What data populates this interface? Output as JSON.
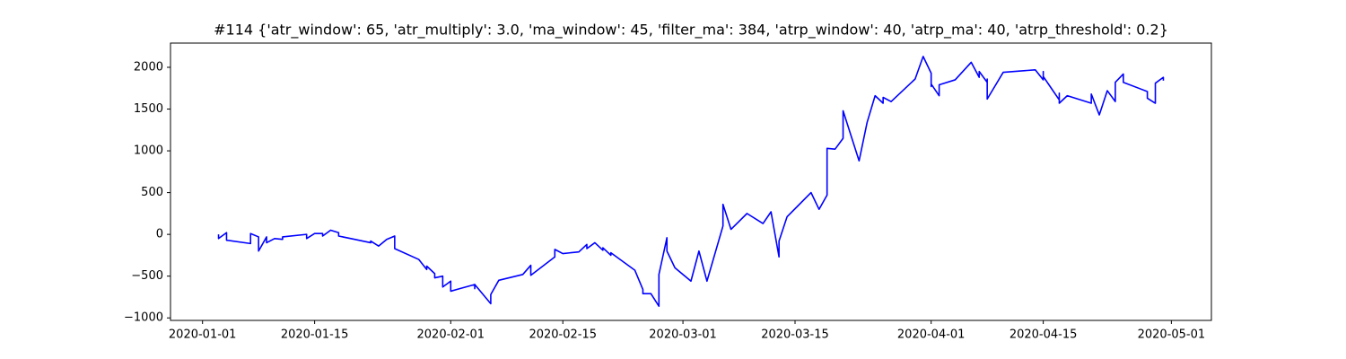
{
  "chart_data": {
    "type": "line",
    "title": "#114 {'atr_window': 65, 'atr_multiply': 3.0, 'ma_window': 45, 'filter_ma': 384, 'atrp_window': 40, 'atrp_ma': 40, 'atrp_threshold': 0.2}",
    "color": "#0000ff",
    "x": [
      "2020-01-03",
      "2020-01-03",
      "2020-01-04",
      "2020-01-04",
      "2020-01-04",
      "2020-01-07",
      "2020-01-07",
      "2020-01-08",
      "2020-01-08",
      "2020-01-09",
      "2020-01-09",
      "2020-01-10",
      "2020-01-11",
      "2020-01-11",
      "2020-01-14",
      "2020-01-14",
      "2020-01-15",
      "2020-01-16",
      "2020-01-16",
      "2020-01-17",
      "2020-01-18",
      "2020-01-18",
      "2020-01-20",
      "2020-01-22",
      "2020-01-22",
      "2020-01-23",
      "2020-01-24",
      "2020-01-25",
      "2020-01-25",
      "2020-01-28",
      "2020-01-29",
      "2020-01-29",
      "2020-01-30",
      "2020-01-30",
      "2020-01-31",
      "2020-01-31",
      "2020-02-01",
      "2020-02-01",
      "2020-02-04",
      "2020-02-04",
      "2020-02-04",
      "2020-02-06",
      "2020-02-06",
      "2020-02-07",
      "2020-02-10",
      "2020-02-11",
      "2020-02-11",
      "2020-02-14",
      "2020-02-14",
      "2020-02-15",
      "2020-02-17",
      "2020-02-18",
      "2020-02-18",
      "2020-02-19",
      "2020-02-20",
      "2020-02-20",
      "2020-02-21",
      "2020-02-21",
      "2020-02-21",
      "2020-02-24",
      "2020-02-25",
      "2020-02-25",
      "2020-02-26",
      "2020-02-27",
      "2020-02-27",
      "2020-02-27",
      "2020-02-28",
      "2020-02-28",
      "2020-02-29",
      "2020-03-02",
      "2020-03-03",
      "2020-03-04",
      "2020-03-06",
      "2020-03-06",
      "2020-03-07",
      "2020-03-09",
      "2020-03-11",
      "2020-03-12",
      "2020-03-13",
      "2020-03-13",
      "2020-03-14",
      "2020-03-17",
      "2020-03-18",
      "2020-03-19",
      "2020-03-19",
      "2020-03-20",
      "2020-03-21",
      "2020-03-21",
      "2020-03-23",
      "2020-03-24",
      "2020-03-24",
      "2020-03-25",
      "2020-03-26",
      "2020-03-26",
      "2020-03-27",
      "2020-03-30",
      "2020-03-31",
      "2020-04-01",
      "2020-04-01",
      "2020-04-01",
      "2020-04-02",
      "2020-04-02",
      "2020-04-04",
      "2020-04-06",
      "2020-04-07",
      "2020-04-07",
      "2020-04-08",
      "2020-04-08",
      "2020-04-08",
      "2020-04-10",
      "2020-04-14",
      "2020-04-15",
      "2020-04-15",
      "2020-04-15",
      "2020-04-16",
      "2020-04-16",
      "2020-04-17",
      "2020-04-17",
      "2020-04-17",
      "2020-04-18",
      "2020-04-21",
      "2020-04-21",
      "2020-04-22",
      "2020-04-23",
      "2020-04-24",
      "2020-04-24",
      "2020-04-25",
      "2020-04-25",
      "2020-04-28",
      "2020-04-28",
      "2020-04-29",
      "2020-04-29",
      "2020-04-29",
      "2020-04-30",
      "2020-04-30"
    ],
    "values": [
      0,
      -50,
      20,
      0,
      -70,
      -110,
      10,
      -30,
      -200,
      -30,
      -100,
      -50,
      -60,
      -30,
      0,
      -50,
      10,
      10,
      -20,
      50,
      20,
      -20,
      -60,
      -100,
      -80,
      -140,
      -60,
      -20,
      -170,
      -300,
      -420,
      -380,
      -470,
      -520,
      -500,
      -630,
      -560,
      -680,
      -600,
      -650,
      -600,
      -830,
      -720,
      -550,
      -480,
      -370,
      -490,
      -270,
      -180,
      -230,
      -210,
      -120,
      -170,
      -100,
      -190,
      -160,
      -250,
      -240,
      -220,
      -430,
      -660,
      -710,
      -710,
      -860,
      -740,
      -480,
      -40,
      -200,
      -400,
      -560,
      -200,
      -560,
      100,
      360,
      60,
      250,
      130,
      270,
      -270,
      -80,
      210,
      500,
      300,
      470,
      1030,
      1020,
      1150,
      1480,
      880,
      1340,
      1340,
      1660,
      1570,
      1640,
      1590,
      1860,
      2130,
      1930,
      1770,
      1800,
      1660,
      1790,
      1850,
      2060,
      1880,
      1950,
      1820,
      1860,
      1620,
      1940,
      1970,
      1850,
      1950,
      1890,
      1750,
      1750,
      1610,
      1690,
      1570,
      1660,
      1570,
      1680,
      1430,
      1720,
      1590,
      1820,
      1920,
      1820,
      1710,
      1630,
      1570,
      1730,
      1810,
      1880,
      1840
    ],
    "xlim": [
      "2019-12-28",
      "2020-05-06"
    ],
    "xticks": [
      "2020-01-01",
      "2020-01-15",
      "2020-02-01",
      "2020-02-15",
      "2020-03-01",
      "2020-03-15",
      "2020-04-01",
      "2020-04-15",
      "2020-05-01"
    ],
    "ylim": [
      -1030,
      2290
    ],
    "yticks": [
      {
        "value": -1000,
        "label": "−1000"
      },
      {
        "value": -500,
        "label": "−500"
      },
      0,
      500,
      1000,
      1500,
      2000
    ]
  }
}
